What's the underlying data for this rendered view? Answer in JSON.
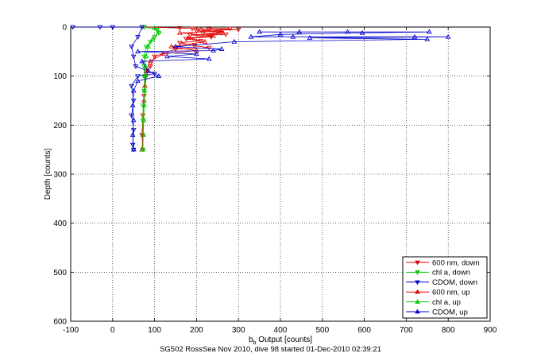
{
  "caption": "SG502 RossSea Nov 2010, dive 98 started 01-Dec-2010 02:39:21",
  "chart_data": {
    "type": "scatter",
    "xlabel_main": "b",
    "xlabel_sub": "b",
    "xlabel_rest": " Output [counts]",
    "ylabel": "Depth [counts]",
    "xlim": [
      -100,
      900
    ],
    "ylim": [
      0,
      600
    ],
    "y_reversed": true,
    "grid": true,
    "legend_placement": "bottom-right",
    "xticks": [
      "-100",
      "0",
      "100",
      "200",
      "300",
      "400",
      "500",
      "600",
      "700",
      "800",
      "900"
    ],
    "yticks": [
      "0",
      "100",
      "200",
      "300",
      "400",
      "500",
      "600"
    ],
    "series": [
      {
        "name": "600 nm, down",
        "color": "#e00000",
        "marker": "triangle-down",
        "points": [
          [
            75,
            0
          ],
          [
            160,
            2
          ],
          [
            190,
            3
          ],
          [
            230,
            4
          ],
          [
            280,
            3
          ],
          [
            300,
            5
          ],
          [
            200,
            8
          ],
          [
            250,
            10
          ],
          [
            215,
            13
          ],
          [
            260,
            12
          ],
          [
            185,
            16
          ],
          [
            235,
            20
          ],
          [
            175,
            24
          ],
          [
            270,
            15
          ],
          [
            210,
            28
          ],
          [
            160,
            32
          ],
          [
            195,
            38
          ],
          [
            230,
            42
          ],
          [
            150,
            45
          ],
          [
            100,
            60
          ],
          [
            90,
            80
          ],
          [
            80,
            100
          ],
          [
            75,
            140
          ],
          [
            72,
            180
          ],
          [
            70,
            220
          ],
          [
            72,
            250
          ]
        ]
      },
      {
        "name": "chl a, down",
        "color": "#00cc00",
        "marker": "triangle-down",
        "points": [
          [
            75,
            0
          ],
          [
            105,
            5
          ],
          [
            110,
            12
          ],
          [
            100,
            20
          ],
          [
            90,
            30
          ],
          [
            80,
            40
          ],
          [
            75,
            60
          ],
          [
            75,
            80
          ],
          [
            76,
            100
          ],
          [
            75,
            130
          ],
          [
            73,
            160
          ],
          [
            72,
            190
          ],
          [
            72,
            220
          ],
          [
            72,
            250
          ]
        ]
      },
      {
        "name": "CDOM, down",
        "color": "#0000cc",
        "marker": "triangle-down",
        "points": [
          [
            -95,
            0
          ],
          [
            -30,
            0
          ],
          [
            0,
            0
          ],
          [
            70,
            0
          ],
          [
            60,
            20
          ],
          [
            45,
            40
          ],
          [
            50,
            60
          ],
          [
            55,
            80
          ],
          [
            100,
            95
          ],
          [
            60,
            100
          ],
          [
            45,
            120
          ],
          [
            50,
            150
          ],
          [
            45,
            180
          ],
          [
            50,
            210
          ],
          [
            48,
            240
          ],
          [
            50,
            250
          ]
        ]
      },
      {
        "name": "600 nm, up",
        "color": "#e00000",
        "marker": "triangle-up",
        "points": [
          [
            70,
            250
          ],
          [
            72,
            220
          ],
          [
            74,
            190
          ],
          [
            75,
            150
          ],
          [
            77,
            120
          ],
          [
            80,
            90
          ],
          [
            90,
            70
          ],
          [
            120,
            55
          ],
          [
            200,
            48
          ],
          [
            140,
            40
          ],
          [
            220,
            30
          ],
          [
            180,
            22
          ],
          [
            240,
            18
          ],
          [
            160,
            12
          ],
          [
            210,
            5
          ],
          [
            260,
            8
          ]
        ]
      },
      {
        "name": "chl a, up",
        "color": "#00cc00",
        "marker": "triangle-up",
        "points": [
          [
            72,
            250
          ],
          [
            73,
            220
          ],
          [
            74,
            190
          ],
          [
            75,
            160
          ],
          [
            76,
            130
          ],
          [
            77,
            100
          ],
          [
            78,
            80
          ],
          [
            80,
            60
          ],
          [
            85,
            40
          ],
          [
            95,
            25
          ],
          [
            110,
            10
          ],
          [
            100,
            2
          ]
        ]
      },
      {
        "name": "CDOM, up",
        "color": "#0000cc",
        "marker": "triangle-up",
        "points": [
          [
            50,
            250
          ],
          [
            48,
            220
          ],
          [
            50,
            190
          ],
          [
            48,
            160
          ],
          [
            50,
            130
          ],
          [
            60,
            110
          ],
          [
            110,
            100
          ],
          [
            85,
            90
          ],
          [
            70,
            70
          ],
          [
            60,
            50
          ],
          [
            130,
            60
          ],
          [
            150,
            40
          ],
          [
            200,
            55
          ],
          [
            260,
            45
          ],
          [
            330,
            20
          ],
          [
            350,
            10
          ],
          [
            400,
            15
          ],
          [
            430,
            20
          ],
          [
            445,
            10
          ],
          [
            470,
            22
          ],
          [
            560,
            10
          ],
          [
            595,
            12
          ],
          [
            720,
            20
          ],
          [
            750,
            25
          ],
          [
            755,
            10
          ],
          [
            800,
            20
          ],
          [
            290,
            30
          ],
          [
            240,
            48
          ],
          [
            230,
            65
          ]
        ]
      }
    ]
  }
}
